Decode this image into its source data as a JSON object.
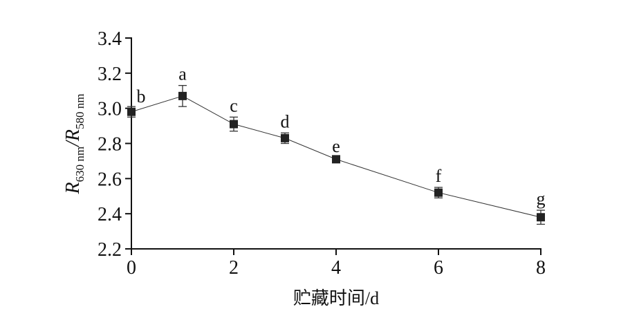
{
  "chart_data": {
    "type": "line",
    "title": "",
    "xlabel": "贮藏时间/d",
    "ylabel": {
      "R1": "R",
      "sub1": "630 nm",
      "sep": "/",
      "R2": "R",
      "sub2": "580 nm"
    },
    "xlim": [
      0,
      8
    ],
    "ylim": [
      2.2,
      3.4
    ],
    "xticks": [
      "0",
      "2",
      "4",
      "6",
      "8"
    ],
    "yticks": [
      "2.2",
      "2.4",
      "2.6",
      "2.8",
      "3.0",
      "3.2",
      "3.4"
    ],
    "grid": false,
    "x": [
      0,
      1,
      2,
      3,
      4,
      6,
      8
    ],
    "y": [
      2.98,
      3.07,
      2.91,
      2.83,
      2.71,
      2.52,
      2.38
    ],
    "error": [
      0.03,
      0.06,
      0.04,
      0.03,
      0.01,
      0.03,
      0.04
    ],
    "labels": [
      "b",
      "a",
      "c",
      "d",
      "e",
      "f",
      "g"
    ],
    "marker": "square",
    "color": "#222222"
  }
}
